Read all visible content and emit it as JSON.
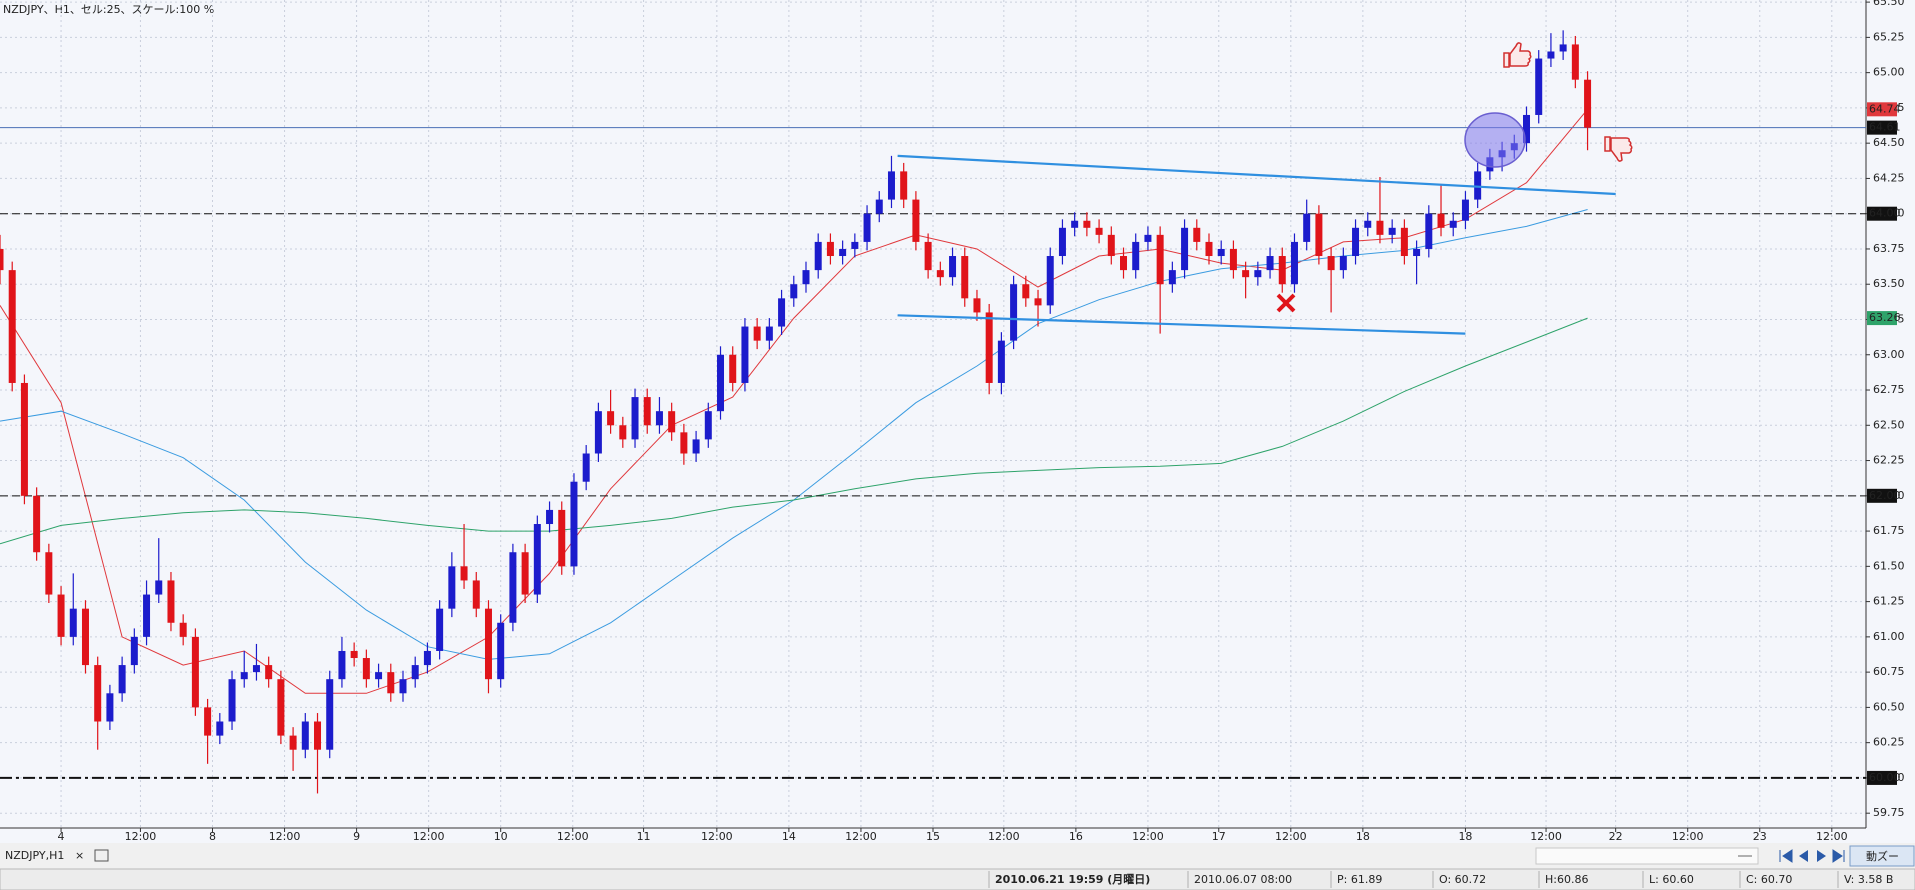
{
  "chart_data": {
    "type": "candlestick",
    "title": "NZDJPY、H1、セル:25、スケール:100 %",
    "background": "#f4f6fb",
    "up_color": "#1c1ccc",
    "down_color": "#e0141a",
    "grid": true,
    "xlim": [
      0,
      152.8
    ],
    "ylim": [
      59.645,
      65.515
    ],
    "yticks": [
      59.75,
      {
        "value": 60,
        "label": "60.00"
      },
      60.25,
      {
        "value": 60.5,
        "label": "60.50"
      },
      60.75,
      {
        "value": 61,
        "label": "61.00"
      },
      61.25,
      {
        "value": 61.5,
        "label": "61.50"
      },
      61.75,
      {
        "value": 62,
        "label": "62.00"
      },
      62.25,
      {
        "value": 62.5,
        "label": "62.50"
      },
      62.75,
      {
        "value": 63,
        "label": "63.00"
      },
      63.25,
      {
        "value": 63.5,
        "label": "63.50"
      },
      63.75,
      {
        "value": 64,
        "label": "64.00"
      },
      64.25,
      {
        "value": 64.5,
        "label": "64.50"
      },
      64.75,
      {
        "value": 65,
        "label": "65.00"
      },
      65.25,
      {
        "value": 65.5,
        "label": "65.50"
      }
    ],
    "xticks": [
      {
        "value": 5.0,
        "label": "4"
      },
      {
        "value": 11.5,
        "label": "12:00"
      },
      {
        "value": 17.4,
        "label": "8"
      },
      {
        "value": 23.3,
        "label": "12:00"
      },
      {
        "value": 29.2,
        "label": "9"
      },
      {
        "value": 35.1,
        "label": "12:00"
      },
      {
        "value": 41.0,
        "label": "10"
      },
      {
        "value": 46.9,
        "label": "12:00"
      },
      {
        "value": 52.7,
        "label": "11"
      },
      {
        "value": 58.7,
        "label": "12:00"
      },
      {
        "value": 64.6,
        "label": "14"
      },
      {
        "value": 70.5,
        "label": "12:00"
      },
      {
        "value": 76.4,
        "label": "15"
      },
      {
        "value": 82.2,
        "label": "12:00"
      },
      {
        "value": 88.1,
        "label": "16"
      },
      {
        "value": 94.0,
        "label": "12:00"
      },
      {
        "value": 99.8,
        "label": "17"
      },
      {
        "value": 105.7,
        "label": "12:00"
      },
      {
        "value": 111.6,
        "label": "18"
      },
      {
        "value": 120.0,
        "label": "18"
      },
      {
        "value": 126.6,
        "label": "12:00"
      },
      {
        "value": 132.3,
        "label": "22"
      },
      {
        "value": 138.2,
        "label": "12:00"
      },
      {
        "value": 144.1,
        "label": "23"
      },
      {
        "value": 150.0,
        "label": "12:00"
      }
    ],
    "candles": [
      [
        63.75,
        63.85,
        63.5,
        63.6
      ],
      [
        63.6,
        63.66,
        62.74,
        62.8
      ],
      [
        62.8,
        62.86,
        61.94,
        62.0
      ],
      [
        62.0,
        62.06,
        61.54,
        61.6
      ],
      [
        61.6,
        61.66,
        61.24,
        61.3
      ],
      [
        61.3,
        61.36,
        60.94,
        61.0
      ],
      [
        61.0,
        61.45,
        60.94,
        61.2
      ],
      [
        61.2,
        61.26,
        60.74,
        60.8
      ],
      [
        60.8,
        60.86,
        60.2,
        60.4
      ],
      [
        60.4,
        60.66,
        60.34,
        60.6
      ],
      [
        60.6,
        60.86,
        60.54,
        60.8
      ],
      [
        60.8,
        61.06,
        60.74,
        61.0
      ],
      [
        61.0,
        61.4,
        60.94,
        61.3
      ],
      [
        61.3,
        61.7,
        61.24,
        61.4
      ],
      [
        61.4,
        61.46,
        61.04,
        61.1
      ],
      [
        61.1,
        61.16,
        60.94,
        61.0
      ],
      [
        61.0,
        61.06,
        60.44,
        60.5
      ],
      [
        60.5,
        60.56,
        60.1,
        60.3
      ],
      [
        60.3,
        60.46,
        60.24,
        60.4
      ],
      [
        60.4,
        60.76,
        60.34,
        60.7
      ],
      [
        60.7,
        60.9,
        60.64,
        60.75
      ],
      [
        60.75,
        60.95,
        60.69,
        60.8
      ],
      [
        60.8,
        60.86,
        60.64,
        60.7
      ],
      [
        60.7,
        60.76,
        60.24,
        60.3
      ],
      [
        60.3,
        60.36,
        60.05,
        60.2
      ],
      [
        60.2,
        60.46,
        60.14,
        60.4
      ],
      [
        60.4,
        60.46,
        59.89,
        60.2
      ],
      [
        60.2,
        60.76,
        60.14,
        60.7
      ],
      [
        60.7,
        61.0,
        60.64,
        60.9
      ],
      [
        60.9,
        60.96,
        60.79,
        60.85
      ],
      [
        60.85,
        60.91,
        60.64,
        60.7
      ],
      [
        60.7,
        60.81,
        60.64,
        60.75
      ],
      [
        60.75,
        60.81,
        60.54,
        60.6
      ],
      [
        60.6,
        60.76,
        60.54,
        60.7
      ],
      [
        60.7,
        60.86,
        60.64,
        60.8
      ],
      [
        60.8,
        60.96,
        60.74,
        60.9
      ],
      [
        60.9,
        61.26,
        60.84,
        61.2
      ],
      [
        61.2,
        61.6,
        61.14,
        61.5
      ],
      [
        61.5,
        61.8,
        61.34,
        61.4
      ],
      [
        61.4,
        61.46,
        61.14,
        61.2
      ],
      [
        61.2,
        61.26,
        60.6,
        60.7
      ],
      [
        60.7,
        61.16,
        60.64,
        61.1
      ],
      [
        61.1,
        61.66,
        61.04,
        61.6
      ],
      [
        61.6,
        61.66,
        61.24,
        61.3
      ],
      [
        61.3,
        61.86,
        61.24,
        61.8
      ],
      [
        61.8,
        61.96,
        61.74,
        61.9
      ],
      [
        61.9,
        61.96,
        61.44,
        61.5
      ],
      [
        61.5,
        62.16,
        61.44,
        62.1
      ],
      [
        62.1,
        62.36,
        62.04,
        62.3
      ],
      [
        62.3,
        62.66,
        62.24,
        62.6
      ],
      [
        62.6,
        62.75,
        62.44,
        62.5
      ],
      [
        62.5,
        62.56,
        62.34,
        62.4
      ],
      [
        62.4,
        62.76,
        62.34,
        62.7
      ],
      [
        62.7,
        62.76,
        62.44,
        62.5
      ],
      [
        62.5,
        62.7,
        62.44,
        62.6
      ],
      [
        62.6,
        62.66,
        62.39,
        62.45
      ],
      [
        62.45,
        62.51,
        62.22,
        62.3
      ],
      [
        62.3,
        62.46,
        62.24,
        62.4
      ],
      [
        62.4,
        62.66,
        62.34,
        62.6
      ],
      [
        62.6,
        63.06,
        62.54,
        63.0
      ],
      [
        63.0,
        63.06,
        62.74,
        62.8
      ],
      [
        62.8,
        63.26,
        62.74,
        63.2
      ],
      [
        63.2,
        63.26,
        63.04,
        63.1
      ],
      [
        63.1,
        63.26,
        63.04,
        63.2
      ],
      [
        63.2,
        63.46,
        63.14,
        63.4
      ],
      [
        63.4,
        63.56,
        63.34,
        63.5
      ],
      [
        63.5,
        63.66,
        63.44,
        63.6
      ],
      [
        63.6,
        63.86,
        63.54,
        63.8
      ],
      [
        63.8,
        63.86,
        63.64,
        63.7
      ],
      [
        63.7,
        63.81,
        63.64,
        63.75
      ],
      [
        63.75,
        63.86,
        63.69,
        63.8
      ],
      [
        63.8,
        64.06,
        63.74,
        64.0
      ],
      [
        64.0,
        64.16,
        63.94,
        64.1
      ],
      [
        64.1,
        64.41,
        64.04,
        64.3
      ],
      [
        64.3,
        64.36,
        64.04,
        64.1
      ],
      [
        64.1,
        64.16,
        63.74,
        63.8
      ],
      [
        63.8,
        63.86,
        63.54,
        63.6
      ],
      [
        63.6,
        63.66,
        63.49,
        63.55
      ],
      [
        63.55,
        63.76,
        63.49,
        63.7
      ],
      [
        63.7,
        63.76,
        63.34,
        63.4
      ],
      [
        63.4,
        63.46,
        63.24,
        63.3
      ],
      [
        63.3,
        63.36,
        62.72,
        62.8
      ],
      [
        62.8,
        63.16,
        62.72,
        63.1
      ],
      [
        63.1,
        63.56,
        63.04,
        63.5
      ],
      [
        63.5,
        63.56,
        63.34,
        63.4
      ],
      [
        63.4,
        63.46,
        63.2,
        63.35
      ],
      [
        63.35,
        63.76,
        63.29,
        63.7
      ],
      [
        63.7,
        63.96,
        63.64,
        63.9
      ],
      [
        63.9,
        64.01,
        63.84,
        63.95
      ],
      [
        63.95,
        64.01,
        63.84,
        63.9
      ],
      [
        63.9,
        63.96,
        63.79,
        63.85
      ],
      [
        63.85,
        63.91,
        63.64,
        63.7
      ],
      [
        63.7,
        63.76,
        63.54,
        63.6
      ],
      [
        63.6,
        63.86,
        63.54,
        63.8
      ],
      [
        63.8,
        63.91,
        63.74,
        63.85
      ],
      [
        63.85,
        63.91,
        63.15,
        63.5
      ],
      [
        63.5,
        63.66,
        63.44,
        63.6
      ],
      [
        63.6,
        63.96,
        63.54,
        63.9
      ],
      [
        63.9,
        63.96,
        63.74,
        63.8
      ],
      [
        63.8,
        63.86,
        63.64,
        63.7
      ],
      [
        63.7,
        63.81,
        63.64,
        63.75
      ],
      [
        63.75,
        63.81,
        63.54,
        63.6
      ],
      [
        63.6,
        63.66,
        63.4,
        63.55
      ],
      [
        63.55,
        63.66,
        63.49,
        63.6
      ],
      [
        63.6,
        63.76,
        63.54,
        63.7
      ],
      [
        63.7,
        63.76,
        63.44,
        63.5
      ],
      [
        63.5,
        63.86,
        63.44,
        63.8
      ],
      [
        63.8,
        64.1,
        63.74,
        64.0
      ],
      [
        64.0,
        64.06,
        63.64,
        63.7
      ],
      [
        63.7,
        63.76,
        63.3,
        63.6
      ],
      [
        63.6,
        63.76,
        63.54,
        63.7
      ],
      [
        63.7,
        63.96,
        63.64,
        63.9
      ],
      [
        63.9,
        64.01,
        63.84,
        63.95
      ],
      [
        63.95,
        64.26,
        63.79,
        63.85
      ],
      [
        63.85,
        63.96,
        63.79,
        63.9
      ],
      [
        63.9,
        63.96,
        63.64,
        63.7
      ],
      [
        63.7,
        63.81,
        63.5,
        63.75
      ],
      [
        63.75,
        64.06,
        63.69,
        64.0
      ],
      [
        64.0,
        64.2,
        63.84,
        63.9
      ],
      [
        63.9,
        64.01,
        63.84,
        63.95
      ],
      [
        63.95,
        64.16,
        63.89,
        64.1
      ],
      [
        64.1,
        64.36,
        64.04,
        64.3
      ],
      [
        64.3,
        64.46,
        64.24,
        64.4
      ],
      [
        64.4,
        64.51,
        64.3,
        64.45
      ],
      [
        64.45,
        64.56,
        64.39,
        64.5
      ],
      [
        64.5,
        64.76,
        64.44,
        64.7
      ],
      [
        64.7,
        65.16,
        64.64,
        65.1
      ],
      [
        65.1,
        65.28,
        65.04,
        65.15
      ],
      [
        65.15,
        65.3,
        65.09,
        65.2
      ],
      [
        65.2,
        65.26,
        64.89,
        64.95
      ],
      [
        64.95,
        65.01,
        64.45,
        64.61
      ]
    ],
    "moving_averages": [
      {
        "color": "#e0383c",
        "axis_marker": true,
        "x": [
          0,
          5,
          10,
          15,
          20,
          25,
          30,
          35,
          40,
          45,
          50,
          55,
          60,
          65,
          70,
          75,
          80,
          85,
          90,
          95,
          100,
          105,
          110,
          115,
          120,
          125,
          130
        ],
        "values": [
          63.35,
          62.66,
          61.0,
          60.8,
          60.9,
          60.6,
          60.6,
          60.75,
          61.0,
          61.45,
          62.05,
          62.5,
          62.7,
          63.26,
          63.7,
          63.85,
          63.75,
          63.48,
          63.7,
          63.75,
          63.65,
          63.6,
          63.8,
          63.83,
          63.96,
          64.22,
          64.74
        ]
      },
      {
        "color": "#3a9be0",
        "axis_marker": false,
        "x": [
          0,
          5,
          10,
          15,
          20,
          25,
          30,
          35,
          40,
          45,
          50,
          55,
          60,
          65,
          70,
          75,
          80,
          85,
          90,
          95,
          100,
          105,
          110,
          115,
          120,
          125,
          130
        ],
        "values": [
          62.53,
          62.6,
          62.44,
          62.27,
          61.97,
          61.53,
          61.19,
          60.93,
          60.84,
          60.88,
          61.1,
          61.4,
          61.7,
          61.97,
          62.31,
          62.66,
          62.92,
          63.22,
          63.39,
          63.52,
          63.61,
          63.65,
          63.7,
          63.74,
          63.83,
          63.91,
          64.03
        ]
      },
      {
        "color": "#2ea36a",
        "axis_marker": true,
        "x": [
          0,
          5,
          10,
          15,
          20,
          25,
          30,
          35,
          40,
          45,
          50,
          55,
          60,
          65,
          70,
          75,
          80,
          85,
          90,
          95,
          100,
          105,
          110,
          115,
          120,
          125,
          130
        ],
        "values": [
          61.66,
          61.79,
          61.84,
          61.88,
          61.9,
          61.88,
          61.84,
          61.79,
          61.75,
          61.75,
          61.79,
          61.84,
          61.92,
          61.97,
          62.05,
          62.12,
          62.16,
          62.18,
          62.2,
          62.21,
          62.23,
          62.35,
          62.53,
          62.74,
          62.92,
          63.09,
          63.26
        ]
      }
    ],
    "trendlines": [
      {
        "color": "#2f8fe0",
        "x": [
          73.5,
          132.3
        ],
        "values": [
          64.41,
          64.14
        ]
      },
      {
        "color": "#2f8fe0",
        "x": [
          73.5,
          120.0
        ],
        "values": [
          63.28,
          63.15
        ]
      }
    ],
    "hlines": [
      {
        "value": 64,
        "label": "64.00",
        "style": "dash",
        "color": "#111111"
      },
      {
        "value": 62,
        "label": "62.00",
        "style": "dash",
        "color": "#111111"
      },
      {
        "value": 60,
        "label": "60.00",
        "style": "dashdot",
        "color": "#111111"
      },
      {
        "value": 64.61,
        "style": "solid",
        "color": "#4a6fb5"
      }
    ]
  },
  "ui": {
    "tab": {
      "label": "NZDJPY,H1",
      "close": "×"
    },
    "zoom_button": "動ズー",
    "status": [
      "2010.06.21 19:59 (月曜日)",
      "2010.06.07 08:00",
      "P: 61.89",
      "O: 60.72",
      "H:60.86",
      "L: 60.60",
      "C: 60.70",
      "V: 3.58 B"
    ]
  }
}
